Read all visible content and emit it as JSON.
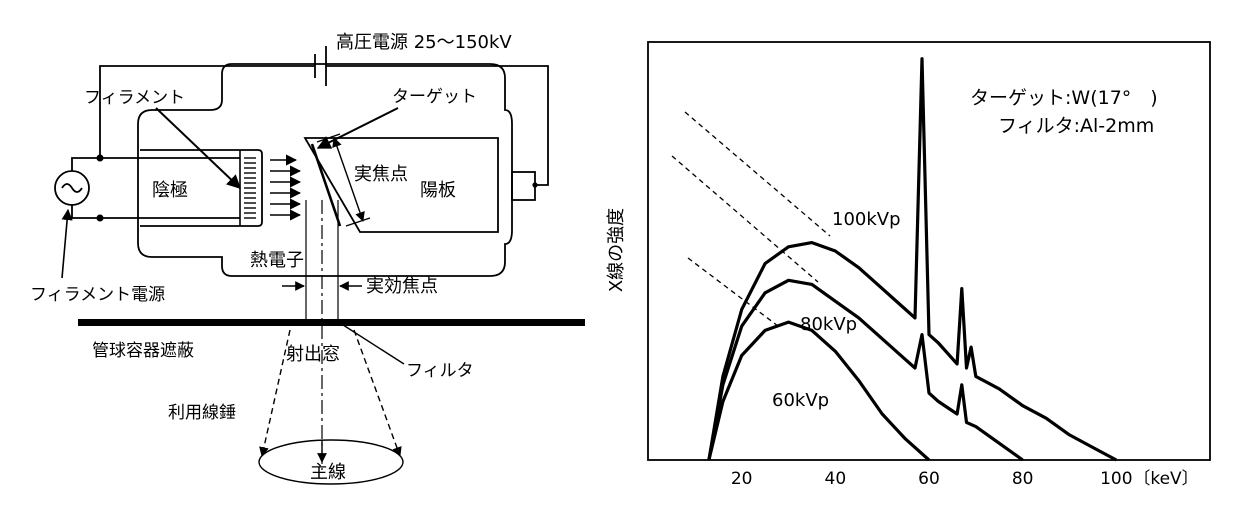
{
  "diagram": {
    "labels": {
      "hv_power": "高圧電源 25〜150kV",
      "filament": "フィラメント",
      "target": "ターゲット",
      "cathode": "陰極",
      "anode": "陽板",
      "actual_focal_spot": "実焦点",
      "thermoelectrons": "熱電子",
      "filament_power": "フィラメント電源",
      "effective_focal_spot": "実効焦点",
      "tube_housing_shield": "管球容器遮蔽",
      "exit_window": "射出窓",
      "filter": "フィルタ",
      "useful_beam": "利用線錘",
      "central_ray": "主線"
    }
  },
  "chart_data": {
    "type": "line",
    "ylabel": "X線の強度",
    "xlabel": "",
    "x_unit": "〔keV〕",
    "x_ticks": [
      20,
      40,
      60,
      80,
      100
    ],
    "xlim": [
      0,
      120
    ],
    "ylim": [
      0,
      100
    ],
    "grid": false,
    "annotations": {
      "target": "ターゲット:W(17°　)",
      "filter": "フィルタ:Al-2mm"
    },
    "series": [
      {
        "name": "100kVp",
        "x": [
          13,
          16,
          20,
          25,
          30,
          35,
          40,
          45,
          50,
          55,
          57,
          58.5,
          60,
          61,
          62,
          66,
          67,
          68,
          69,
          70,
          75,
          80,
          85,
          90,
          95,
          100
        ],
        "y": [
          0,
          20,
          36,
          47,
          51,
          52,
          50,
          46,
          41,
          36,
          34,
          96,
          30,
          29,
          28,
          23,
          41,
          22,
          27,
          20,
          17,
          13,
          10,
          6,
          3,
          0
        ]
      },
      {
        "name": "80kVp",
        "x": [
          13,
          16,
          20,
          25,
          30,
          35,
          40,
          45,
          50,
          55,
          57,
          58.5,
          60,
          62,
          66,
          67,
          68,
          70,
          75,
          80
        ],
        "y": [
          0,
          18,
          32,
          40,
          43,
          42,
          38,
          34,
          29,
          24,
          22,
          30,
          16,
          14,
          11,
          18,
          9,
          8,
          4,
          0
        ]
      },
      {
        "name": "60kVp",
        "x": [
          13,
          16,
          20,
          25,
          30,
          35,
          40,
          45,
          50,
          55,
          60
        ],
        "y": [
          0,
          14,
          25,
          31,
          33,
          31,
          26,
          19,
          11,
          5,
          0
        ]
      }
    ]
  }
}
